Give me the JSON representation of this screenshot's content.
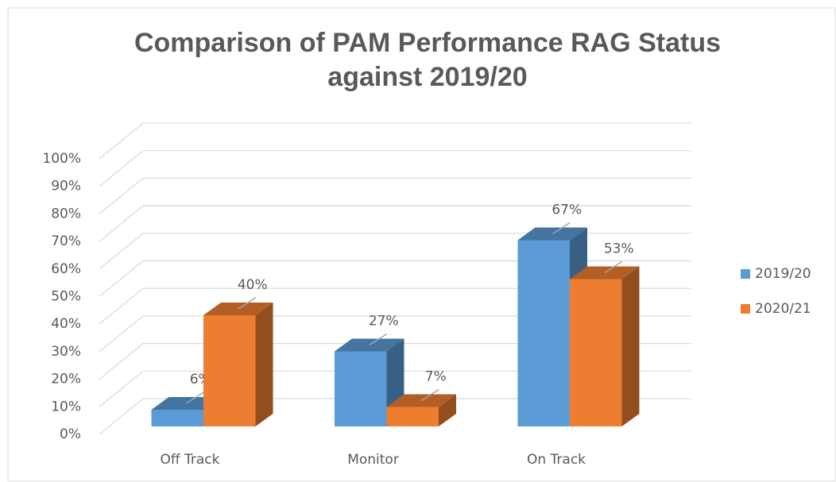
{
  "chart_data": {
    "type": "bar3d",
    "title": [
      "Comparison of PAM Performance RAG Status",
      "against 2019/20"
    ],
    "categories": [
      "Off Track",
      "Monitor",
      "On Track"
    ],
    "series": [
      {
        "name": "2019/20",
        "color": "#5b9bd5",
        "values": [
          6,
          27,
          67
        ],
        "value_labels": [
          "6%",
          "27%",
          "67%"
        ]
      },
      {
        "name": "2020/21",
        "color": "#ed7d31",
        "values": [
          40,
          7,
          53
        ],
        "value_labels": [
          "40%",
          "7%",
          "53%"
        ]
      }
    ],
    "ylim": [
      0,
      100
    ],
    "yticks": [
      {
        "value": 0,
        "label": "0%"
      },
      {
        "value": 10,
        "label": "10%"
      },
      {
        "value": 20,
        "label": "20%"
      },
      {
        "value": 30,
        "label": "30%"
      },
      {
        "value": 40,
        "label": "40%"
      },
      {
        "value": 50,
        "label": "50%"
      },
      {
        "value": 60,
        "label": "60%"
      },
      {
        "value": 70,
        "label": "70%"
      },
      {
        "value": 80,
        "label": "80%"
      },
      {
        "value": 90,
        "label": "90%"
      },
      {
        "value": 100,
        "label": "100%"
      }
    ],
    "grid": true,
    "legend": "right"
  }
}
